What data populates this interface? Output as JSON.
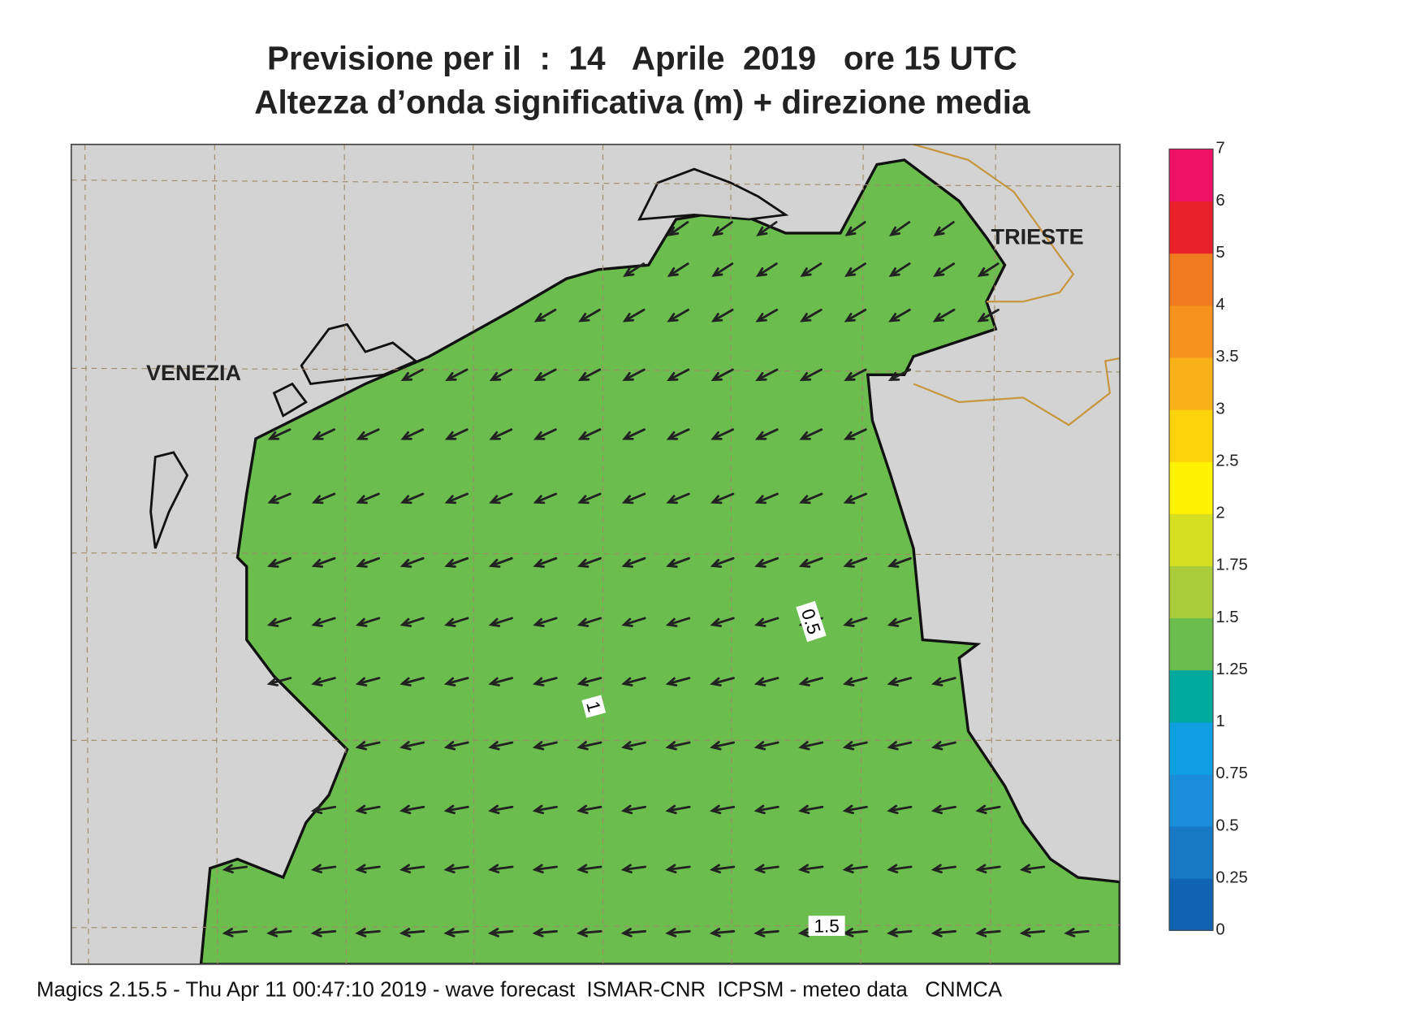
{
  "header": {
    "title_line1": "Previsione per il  :  14   Aprile  2019   ore 15 UTC",
    "title_line2": "Altezza d’onda significativa (m) + direzione media"
  },
  "map": {
    "places": [
      "VENEZIA",
      "TRIESTE"
    ],
    "contour_labels": [
      "0.5",
      "1",
      "1.5"
    ]
  },
  "legend": {
    "levels": [
      0,
      0.25,
      0.5,
      0.75,
      1,
      1.25,
      1.5,
      1.75,
      2,
      2.5,
      3,
      3.5,
      4,
      5,
      6,
      7
    ],
    "colors": [
      "#0f63b0",
      "#1778c4",
      "#1a8ed8",
      "#0e9fe0",
      "#00a99d",
      "#6bbd4e",
      "#a8cc3a",
      "#d7df23",
      "#fff200",
      "#fcd20a",
      "#f9b11a",
      "#f7921e",
      "#f07a20",
      "#e8202a",
      "#ee1166"
    ]
  },
  "footer": "Magics 2.15.5 - Thu Apr 11 00:47:10 2019 - wave forecast  ISMAR-CNR  ICPSM - meteo data   CNMCA"
}
